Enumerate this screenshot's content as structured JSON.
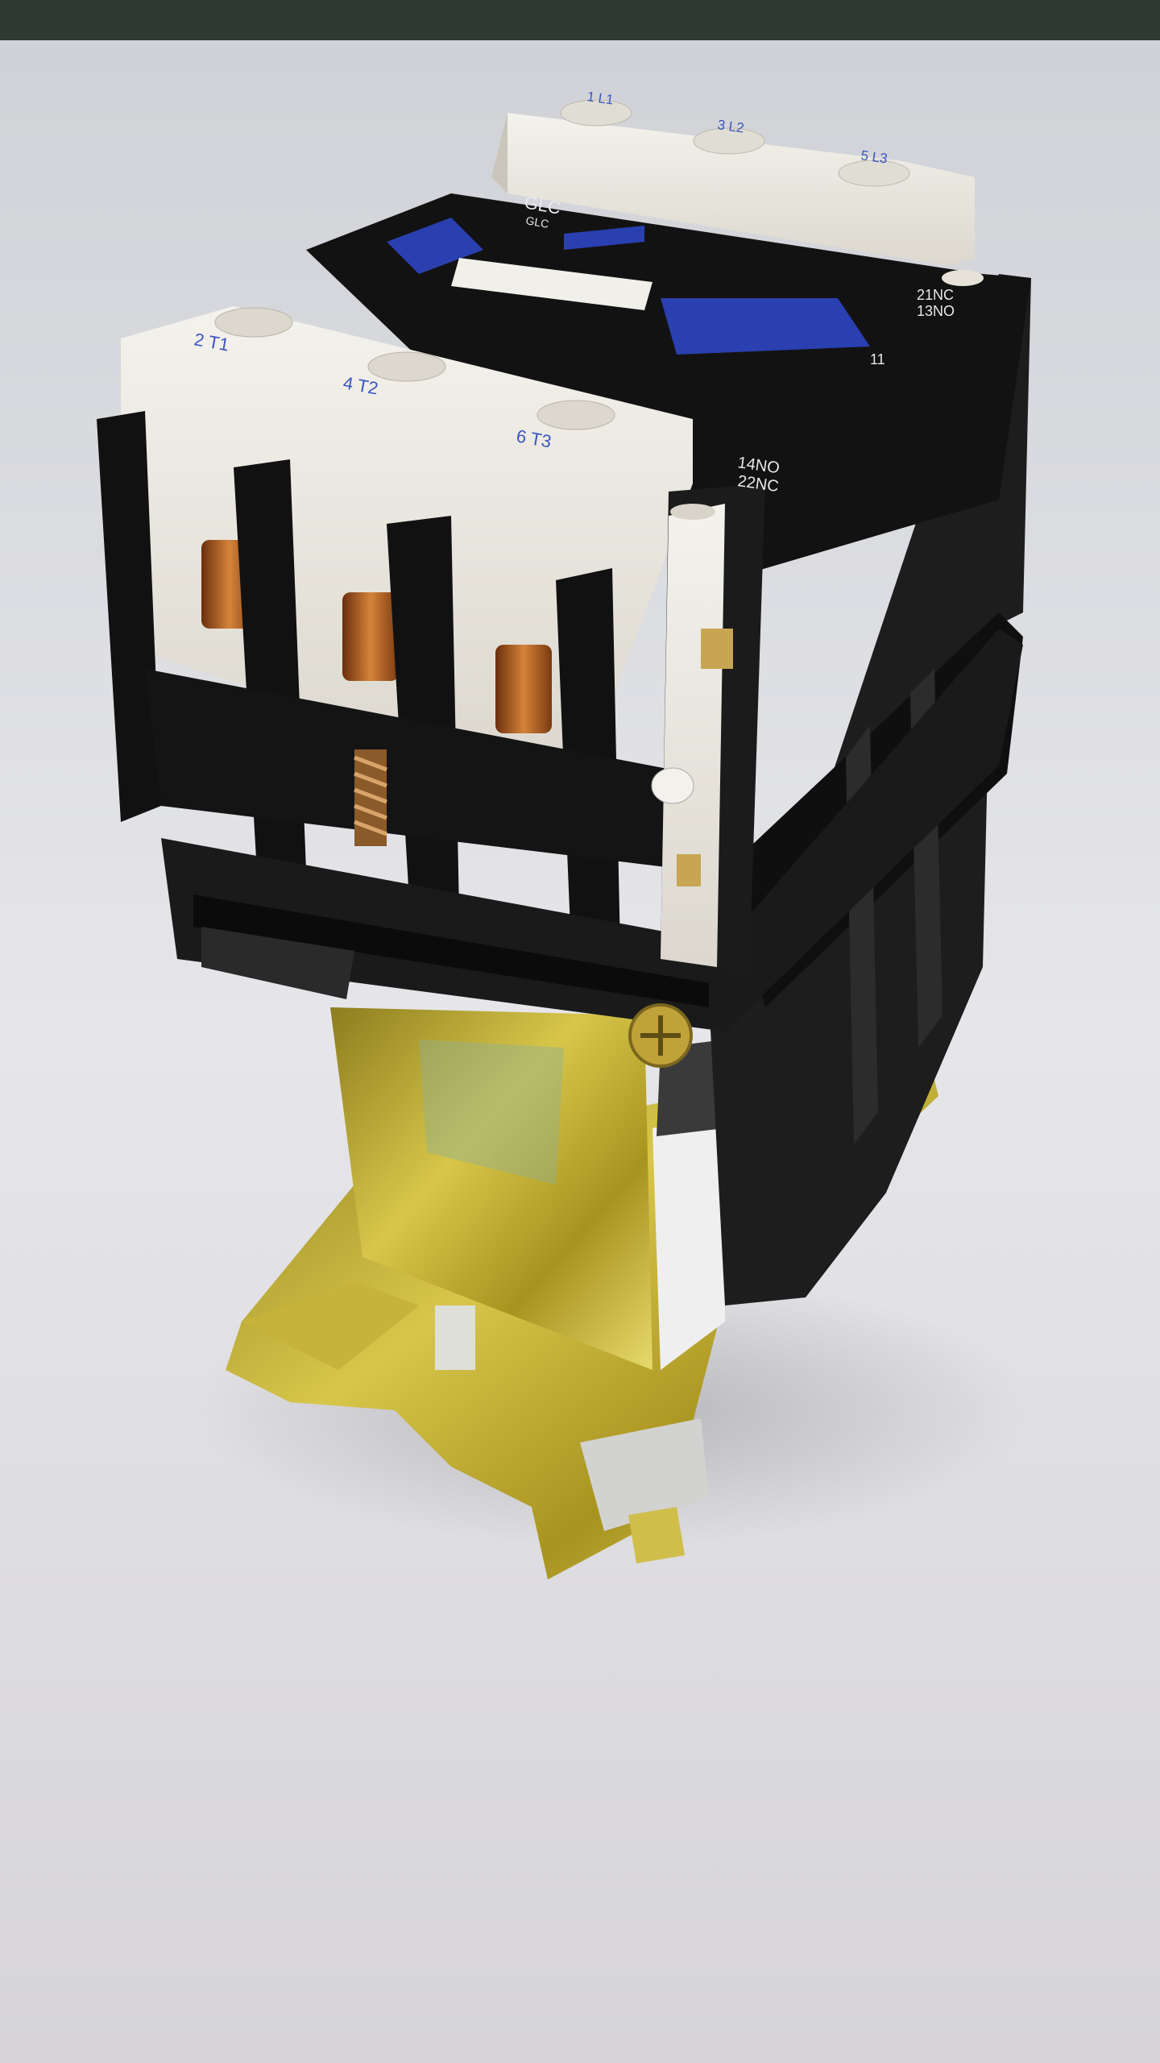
{
  "image": {
    "alt": "Electrical contactor on a white surface"
  },
  "labels": {
    "top_terminals": [
      "1 L1",
      "3 L2",
      "5 L3"
    ],
    "bottom_terminals": [
      "2 T1",
      "4 T2",
      "6 T3"
    ],
    "brand": "GLC",
    "brand_sub": "GLC",
    "aux_top_line1": "21NC",
    "aux_top_line2": "13NO",
    "aux_num": "11",
    "aux_bottom_line1": "14NO",
    "aux_bottom_line2": "22NC"
  },
  "colors": {
    "background": "#dcdcdf",
    "housing": "#151515",
    "terminal_block": "#ece9e2",
    "actuator_blue": "#2a3fb0",
    "mounting_plate": "#b7a52a",
    "copper": "#b5651d"
  }
}
